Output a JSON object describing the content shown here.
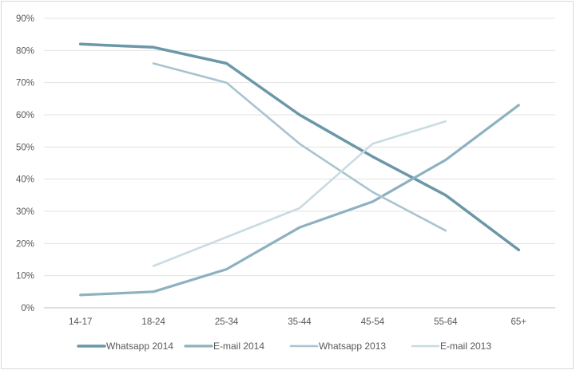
{
  "chart_data": {
    "type": "line",
    "title": "",
    "xlabel": "",
    "ylabel": "",
    "categories": [
      "14-17",
      "18-24",
      "25-34",
      "35-44",
      "45-54",
      "55-64",
      "65+"
    ],
    "y_ticks": [
      "0%",
      "10%",
      "20%",
      "30%",
      "40%",
      "50%",
      "60%",
      "70%",
      "80%",
      "90%"
    ],
    "ylim": [
      0,
      90
    ],
    "grid": true,
    "legend_position": "bottom",
    "series": [
      {
        "name": "Whatsapp 2014",
        "color": "#6b97a8",
        "width": 3.5,
        "values": [
          82,
          81,
          76,
          60,
          47,
          35,
          18
        ]
      },
      {
        "name": "E-mail 2014",
        "color": "#8eb1c0",
        "width": 3.2,
        "values": [
          4,
          5,
          12,
          25,
          33,
          46,
          63
        ]
      },
      {
        "name": "Whatsapp 2013",
        "color": "#a9c4cf",
        "width": 2.6,
        "values": [
          null,
          76,
          70,
          51,
          36,
          24,
          null
        ]
      },
      {
        "name": "E-mail 2013",
        "color": "#c9dbe2",
        "width": 2.6,
        "values": [
          null,
          13,
          22,
          31,
          51,
          58,
          null
        ]
      }
    ]
  }
}
